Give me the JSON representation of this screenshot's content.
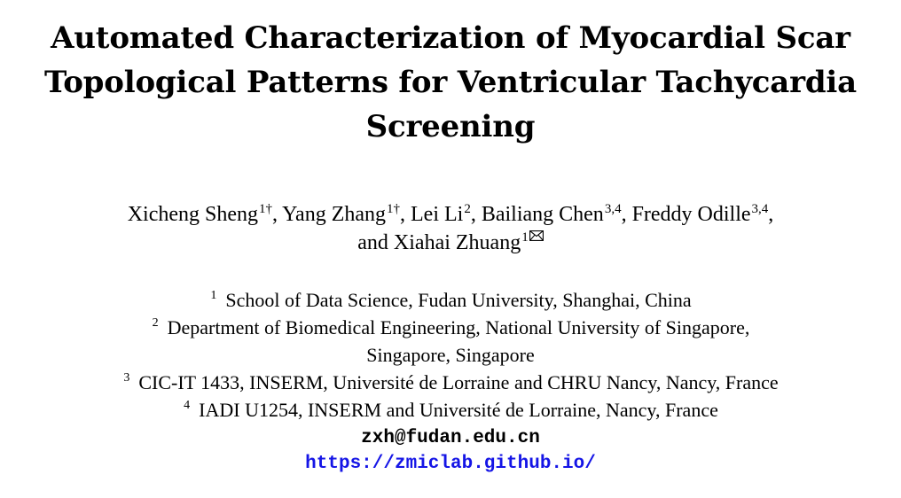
{
  "paper": {
    "title_lines": [
      "Automated Characterization of Myocardial Scar",
      "Topological Patterns for Ventricular Tachycardia",
      "Screening"
    ],
    "authors": [
      {
        "name": "Xicheng Sheng",
        "sup": "1†",
        "sep": ", "
      },
      {
        "name": "Yang Zhang",
        "sup": "1†",
        "sep": ", "
      },
      {
        "name": "Lei Li",
        "sup": "2",
        "sep": ", "
      },
      {
        "name": "Bailiang Chen",
        "sup": "3,4",
        "sep": ", "
      },
      {
        "name": "Freddy Odille",
        "sup": "3,4",
        "sep": ","
      },
      {
        "name_prefix": "and ",
        "name": "Xiahai Zhuang",
        "sup": "1",
        "icon": "envelope-icon"
      }
    ],
    "affiliations": [
      {
        "sup": "1",
        "text": "School of Data Science, Fudan University, Shanghai, China"
      },
      {
        "sup": "2",
        "text": "Department of Biomedical Engineering, National University of Singapore,"
      },
      {
        "sup": "",
        "text": "Singapore, Singapore"
      },
      {
        "sup": "3",
        "text": "CIC-IT 1433, INSERM, Université de Lorraine and CHRU Nancy, Nancy, France"
      },
      {
        "sup": "4",
        "text": "IADI U1254, INSERM and Université de Lorraine, Nancy, France"
      }
    ],
    "email": "zxh@fudan.edu.cn",
    "url": "https://zmiclab.github.io/",
    "link_color": "#1515e6"
  }
}
